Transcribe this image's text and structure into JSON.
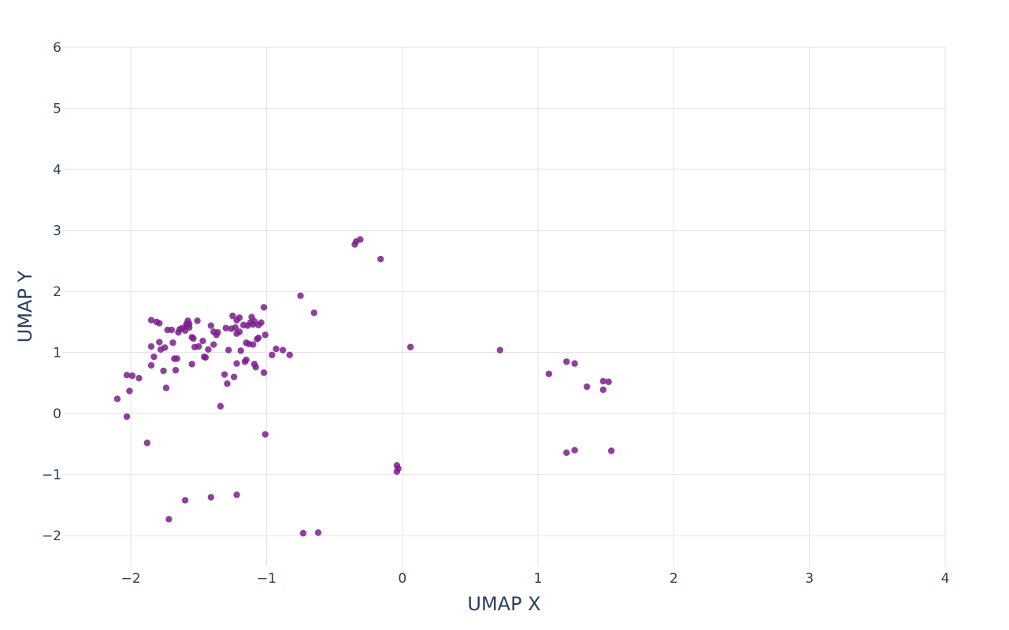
{
  "chart_data": {
    "type": "scatter",
    "title": "",
    "xlabel": "UMAP X",
    "ylabel": "UMAP Y",
    "xlim": [
      -2.5,
      4
    ],
    "ylim": [
      -2.5,
      6
    ],
    "x_ticks": [
      -2,
      -1,
      0,
      1,
      2,
      3,
      4
    ],
    "y_ticks": [
      -2,
      -1,
      0,
      1,
      2,
      3,
      4,
      5,
      6
    ],
    "x_tick_labels": [
      "−2",
      "−1",
      "0",
      "1",
      "2",
      "3",
      "4"
    ],
    "y_tick_labels": [
      "−2",
      "−1",
      "0",
      "1",
      "2",
      "3",
      "4",
      "5",
      "6"
    ],
    "grid": true,
    "legend": "none",
    "marker_color": "#7b1f8c",
    "series": [
      {
        "points": [
          [
            -2.1,
            0.24
          ],
          [
            -2.03,
            -0.05
          ],
          [
            -2.03,
            0.63
          ],
          [
            -2.01,
            0.37
          ],
          [
            -1.99,
            0.62
          ],
          [
            -1.94,
            0.58
          ],
          [
            -1.88,
            -0.48
          ],
          [
            -1.85,
            1.53
          ],
          [
            -1.85,
            1.1
          ],
          [
            -1.85,
            0.79
          ],
          [
            -1.83,
            0.93
          ],
          [
            -1.81,
            1.5
          ],
          [
            -1.79,
            1.48
          ],
          [
            -1.79,
            1.17
          ],
          [
            -1.78,
            1.05
          ],
          [
            -1.76,
            0.7
          ],
          [
            -1.75,
            1.08
          ],
          [
            -1.74,
            0.42
          ],
          [
            -1.73,
            1.37
          ],
          [
            -1.72,
            -1.73
          ],
          [
            -1.7,
            1.37
          ],
          [
            -1.69,
            1.16
          ],
          [
            -1.68,
            0.9
          ],
          [
            -1.67,
            0.71
          ],
          [
            -1.66,
            0.9
          ],
          [
            -1.65,
            1.33
          ],
          [
            -1.64,
            1.38
          ],
          [
            -1.62,
            1.4
          ],
          [
            -1.6,
            1.36
          ],
          [
            -1.59,
            1.47
          ],
          [
            -1.59,
            1.43
          ],
          [
            -1.58,
            1.52
          ],
          [
            -1.57,
            1.41
          ],
          [
            -1.57,
            1.47
          ],
          [
            -1.55,
            1.25
          ],
          [
            -1.55,
            0.81
          ],
          [
            -1.54,
            1.23
          ],
          [
            -1.53,
            1.09
          ],
          [
            -1.51,
            1.52
          ],
          [
            -1.5,
            1.1
          ],
          [
            -1.6,
            -1.42
          ],
          [
            -1.47,
            1.19
          ],
          [
            -1.46,
            0.93
          ],
          [
            -1.45,
            0.92
          ],
          [
            -1.43,
            1.05
          ],
          [
            -1.41,
            1.44
          ],
          [
            -1.41,
            -1.37
          ],
          [
            -1.39,
            1.34
          ],
          [
            -1.39,
            1.13
          ],
          [
            -1.37,
            1.29
          ],
          [
            -1.36,
            1.33
          ],
          [
            -1.34,
            0.12
          ],
          [
            -1.31,
            0.64
          ],
          [
            -1.3,
            1.4
          ],
          [
            -1.29,
            0.49
          ],
          [
            -1.28,
            1.04
          ],
          [
            -1.26,
            1.39
          ],
          [
            -1.25,
            1.6
          ],
          [
            -1.24,
            0.6
          ],
          [
            -1.23,
            1.41
          ],
          [
            -1.22,
            1.31
          ],
          [
            -1.22,
            1.53
          ],
          [
            -1.22,
            0.82
          ],
          [
            -1.22,
            -1.33
          ],
          [
            -1.2,
            1.57
          ],
          [
            -1.2,
            1.34
          ],
          [
            -1.19,
            1.03
          ],
          [
            -1.17,
            1.45
          ],
          [
            -1.16,
            0.85
          ],
          [
            -1.15,
            1.16
          ],
          [
            -1.15,
            0.88
          ],
          [
            -1.14,
            1.44
          ],
          [
            -1.13,
            1.14
          ],
          [
            -1.12,
            1.49
          ],
          [
            -1.11,
            1.58
          ],
          [
            -1.1,
            1.46
          ],
          [
            -1.1,
            1.13
          ],
          [
            -1.09,
            1.51
          ],
          [
            -1.09,
            0.81
          ],
          [
            -1.08,
            0.76
          ],
          [
            -1.07,
            1.22
          ],
          [
            -1.06,
            1.45
          ],
          [
            -1.06,
            1.24
          ],
          [
            -1.04,
            1.49
          ],
          [
            -1.02,
            1.74
          ],
          [
            -1.02,
            0.67
          ],
          [
            -1.01,
            1.29
          ],
          [
            -1.01,
            -0.34
          ],
          [
            -0.96,
            0.96
          ],
          [
            -0.93,
            1.06
          ],
          [
            -0.88,
            1.04
          ],
          [
            -0.83,
            0.96
          ],
          [
            -0.75,
            1.93
          ],
          [
            -0.73,
            -1.96
          ],
          [
            -0.65,
            1.65
          ],
          [
            -0.62,
            -1.95
          ],
          [
            -0.35,
            2.77
          ],
          [
            -0.34,
            2.82
          ],
          [
            -0.31,
            2.85
          ],
          [
            -0.16,
            2.53
          ],
          [
            -0.04,
            -0.85
          ],
          [
            -0.04,
            -0.95
          ],
          [
            -0.03,
            -0.9
          ],
          [
            0.06,
            1.09
          ],
          [
            0.72,
            1.04
          ],
          [
            1.08,
            0.65
          ],
          [
            1.21,
            0.85
          ],
          [
            1.21,
            -0.64
          ],
          [
            1.27,
            0.82
          ],
          [
            1.27,
            -0.6
          ],
          [
            1.36,
            0.44
          ],
          [
            1.48,
            0.53
          ],
          [
            1.48,
            0.39
          ],
          [
            1.52,
            0.52
          ],
          [
            1.54,
            -0.61
          ]
        ]
      }
    ]
  }
}
